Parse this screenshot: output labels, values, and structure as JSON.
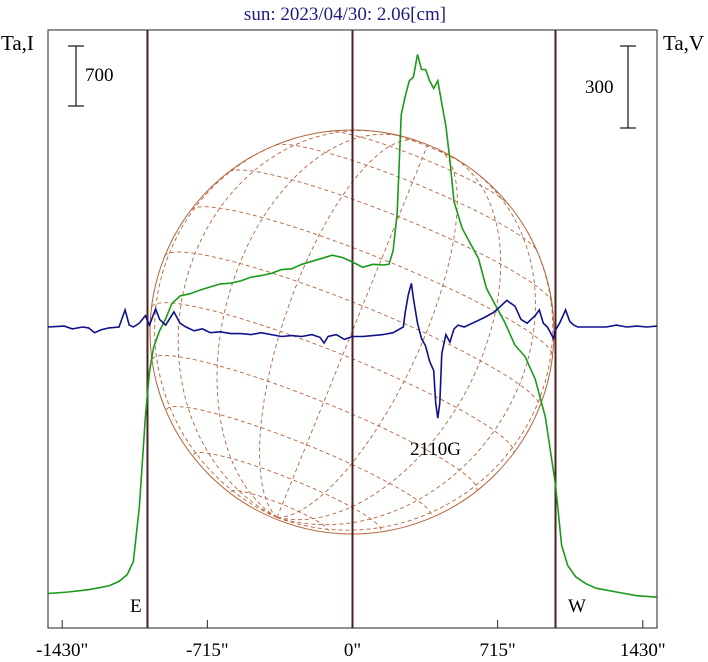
{
  "chart_data": {
    "type": "line",
    "title": "sun: 2023/04/30: 2.06[cm]",
    "left_axis_label": "Ta,I",
    "right_axis_label": "Ta,V",
    "xlim": [
      -1500,
      1500
    ],
    "x_ticks": [
      {
        "value": -1430,
        "label": "-1430\""
      },
      {
        "value": -715,
        "label": "-715\""
      },
      {
        "value": 0,
        "label": "0\""
      },
      {
        "value": 715,
        "label": "715\""
      },
      {
        "value": 1430,
        "label": "1430\""
      }
    ],
    "vertical_markers": [
      -1010,
      0,
      1000
    ],
    "limb_labels": {
      "east": "E",
      "west": "W"
    },
    "scale_bars": {
      "left": "700",
      "right": "300"
    },
    "annotation": {
      "text": "2110G",
      "x": 430
    },
    "series": [
      {
        "name": "I",
        "color": "#1a9a1a",
        "baseline": 0,
        "x": [
          -1500,
          -1400,
          -1300,
          -1200,
          -1150,
          -1110,
          -1080,
          -1050,
          -1020,
          -1000,
          -980,
          -950,
          -920,
          -890,
          -850,
          -800,
          -750,
          -700,
          -650,
          -600,
          -550,
          -500,
          -450,
          -400,
          -350,
          -300,
          -250,
          -200,
          -150,
          -100,
          -50,
          0,
          50,
          100,
          150,
          180,
          200,
          220,
          240,
          260,
          280,
          300,
          320,
          340,
          360,
          380,
          400,
          420,
          440,
          460,
          480,
          500,
          540,
          580,
          620,
          660,
          700,
          750,
          800,
          850,
          900,
          950,
          1000,
          1030,
          1060,
          1100,
          1150,
          1200,
          1300,
          1400,
          1500
        ],
        "values": [
          60,
          80,
          110,
          160,
          220,
          310,
          480,
          1200,
          2400,
          3000,
          3320,
          3540,
          3700,
          3900,
          4000,
          4030,
          4080,
          4120,
          4160,
          4170,
          4200,
          4250,
          4270,
          4300,
          4350,
          4360,
          4420,
          4460,
          4500,
          4540,
          4510,
          4450,
          4380,
          4420,
          4410,
          4420,
          4600,
          5100,
          6400,
          6650,
          6850,
          6900,
          7200,
          7000,
          7000,
          6850,
          6750,
          6850,
          6550,
          6250,
          5800,
          5250,
          4900,
          4700,
          4500,
          4100,
          3900,
          3650,
          3350,
          3200,
          2900,
          2400,
          1500,
          700,
          430,
          280,
          190,
          130,
          80,
          30,
          10
        ]
      },
      {
        "name": "V",
        "color": "#10108c",
        "baseline": 0,
        "x": [
          -1500,
          -1420,
          -1380,
          -1330,
          -1300,
          -1270,
          -1240,
          -1200,
          -1150,
          -1120,
          -1100,
          -1080,
          -1050,
          -1020,
          -1000,
          -970,
          -950,
          -920,
          -880,
          -850,
          -820,
          -780,
          -740,
          -700,
          -650,
          -600,
          -550,
          -500,
          -450,
          -400,
          -350,
          -300,
          -250,
          -200,
          -160,
          -140,
          -120,
          -80,
          -40,
          0,
          50,
          100,
          150,
          200,
          250,
          260,
          275,
          290,
          300,
          320,
          340,
          360,
          380,
          400,
          410,
          420,
          430,
          440,
          460,
          480,
          500,
          520,
          550,
          600,
          650,
          700,
          730,
          760,
          800,
          830,
          860,
          900,
          920,
          940,
          960,
          990,
          1000,
          1020,
          1050,
          1070,
          1090,
          1110,
          1150,
          1200,
          1250,
          1300,
          1350,
          1400,
          1450,
          1500
        ],
        "values": [
          0,
          5,
          -10,
          0,
          -5,
          -30,
          -15,
          -5,
          0,
          90,
          10,
          0,
          20,
          60,
          10,
          95,
          40,
          10,
          80,
          20,
          0,
          -20,
          -10,
          -30,
          -25,
          -35,
          -35,
          -40,
          -30,
          -40,
          -50,
          -45,
          -50,
          -40,
          -55,
          -85,
          -50,
          -40,
          -65,
          -50,
          -50,
          -45,
          -40,
          -30,
          0,
          80,
          170,
          230,
          150,
          20,
          -60,
          -100,
          -180,
          -230,
          -400,
          -480,
          -400,
          -140,
          -40,
          -80,
          -10,
          10,
          0,
          25,
          50,
          80,
          110,
          140,
          110,
          40,
          20,
          60,
          90,
          20,
          0,
          -60,
          -15,
          20,
          90,
          30,
          10,
          0,
          0,
          0,
          0,
          10,
          0,
          5,
          0,
          5
        ]
      }
    ]
  }
}
